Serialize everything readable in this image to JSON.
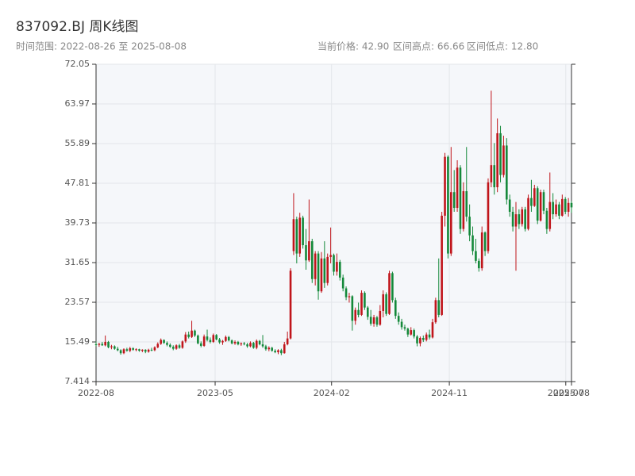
{
  "chart_data": {
    "type": "candlestick",
    "title": "837092.BJ 周K线图",
    "subtitle": "时间范围: 2022-08-26 至 2025-08-08",
    "stats": [
      "当前价格: 42.90",
      "区间高点: 66.66",
      "区间低点: 12.80"
    ],
    "up_color": "#c0151b",
    "down_color": "#14893a",
    "grid": true,
    "ylim": [
      7.414,
      72.05
    ],
    "yticks": [
      7.414,
      15.49,
      23.57,
      31.65,
      39.73,
      47.81,
      55.89,
      63.97,
      72.05
    ],
    "xlim": [
      "2022-08-26",
      "2025-08-08"
    ],
    "xticks": [
      {
        "value": "2022-08-26",
        "label": "2022-08"
      },
      {
        "value": "2023-05-23",
        "label": "2023-05"
      },
      {
        "value": "2024-02-11",
        "label": "2024-02"
      },
      {
        "value": "2024-11-04",
        "label": "2024-11"
      },
      {
        "value": "2025-07-26",
        "label": "2025-07"
      },
      {
        "value": "2025-08-08",
        "label": "2025-08"
      }
    ],
    "x": [
      "2022-08-26",
      "2022-09-02",
      "2022-09-09",
      "2022-09-16",
      "2022-09-23",
      "2022-09-30",
      "2022-10-07",
      "2022-10-14",
      "2022-10-21",
      "2022-10-28",
      "2022-11-04",
      "2022-11-11",
      "2022-11-18",
      "2022-11-25",
      "2022-12-02",
      "2022-12-09",
      "2022-12-16",
      "2022-12-23",
      "2022-12-30",
      "2023-01-06",
      "2023-01-13",
      "2023-01-20",
      "2023-01-27",
      "2023-02-03",
      "2023-02-10",
      "2023-02-17",
      "2023-02-24",
      "2023-03-03",
      "2023-03-10",
      "2023-03-17",
      "2023-03-24",
      "2023-03-31",
      "2023-04-07",
      "2023-04-14",
      "2023-04-21",
      "2023-04-28",
      "2023-05-05",
      "2023-05-12",
      "2023-05-19",
      "2023-05-26",
      "2023-06-02",
      "2023-06-09",
      "2023-06-16",
      "2023-06-23",
      "2023-06-30",
      "2023-07-07",
      "2023-07-14",
      "2023-07-21",
      "2023-07-28",
      "2023-08-04",
      "2023-08-11",
      "2023-08-18",
      "2023-08-25",
      "2023-09-01",
      "2023-09-08",
      "2023-09-15",
      "2023-09-22",
      "2023-09-29",
      "2023-10-06",
      "2023-10-13",
      "2023-10-20",
      "2023-10-27",
      "2023-11-03",
      "2023-11-10",
      "2023-11-17",
      "2023-11-24",
      "2023-12-01",
      "2023-12-08",
      "2023-12-15",
      "2023-12-22",
      "2023-12-29",
      "2024-01-05",
      "2024-01-12",
      "2024-01-19",
      "2024-01-26",
      "2024-02-02",
      "2024-02-09",
      "2024-02-16",
      "2024-02-23",
      "2024-03-01",
      "2024-03-08",
      "2024-03-15",
      "2024-03-22",
      "2024-03-29",
      "2024-04-05",
      "2024-04-12",
      "2024-04-19",
      "2024-04-26",
      "2024-05-03",
      "2024-05-10",
      "2024-05-17",
      "2024-05-24",
      "2024-05-31",
      "2024-06-07",
      "2024-06-14",
      "2024-06-21",
      "2024-06-28",
      "2024-07-05",
      "2024-07-12",
      "2024-07-19",
      "2024-07-26",
      "2024-08-02",
      "2024-08-09",
      "2024-08-16",
      "2024-08-23",
      "2024-08-30",
      "2024-09-06",
      "2024-09-13",
      "2024-09-20",
      "2024-09-27",
      "2024-10-04",
      "2024-10-11",
      "2024-10-18",
      "2024-10-25",
      "2024-11-01",
      "2024-11-08",
      "2024-11-15",
      "2024-11-22",
      "2024-11-29",
      "2024-12-06",
      "2024-12-13",
      "2024-12-20",
      "2024-12-27",
      "2025-01-03",
      "2025-01-10",
      "2025-01-17",
      "2025-01-24",
      "2025-01-31",
      "2025-02-07",
      "2025-02-14",
      "2025-02-21",
      "2025-02-28",
      "2025-03-07",
      "2025-03-14",
      "2025-03-21",
      "2025-03-28",
      "2025-04-04",
      "2025-04-11",
      "2025-04-18",
      "2025-04-25",
      "2025-05-02",
      "2025-05-09",
      "2025-05-16",
      "2025-05-23",
      "2025-05-30",
      "2025-06-06",
      "2025-06-13",
      "2025-06-20",
      "2025-06-27",
      "2025-07-04",
      "2025-07-11",
      "2025-07-18",
      "2025-07-25",
      "2025-08-01",
      "2025-08-08"
    ],
    "candles": [
      [
        15.0,
        15.6,
        14.6,
        14.9
      ],
      [
        14.9,
        15.3,
        14.5,
        15.1
      ],
      [
        15.1,
        15.5,
        14.7,
        14.8
      ],
      [
        14.8,
        16.8,
        14.6,
        15.5
      ],
      [
        15.5,
        15.7,
        14.2,
        14.4
      ],
      [
        14.4,
        14.9,
        14.0,
        14.6
      ],
      [
        14.6,
        14.8,
        13.9,
        14.1
      ],
      [
        14.1,
        14.5,
        13.6,
        13.8
      ],
      [
        13.8,
        14.0,
        12.9,
        13.2
      ],
      [
        13.2,
        14.2,
        13.0,
        14.0
      ],
      [
        14.0,
        14.3,
        13.5,
        13.7
      ],
      [
        13.7,
        14.5,
        13.4,
        14.2
      ],
      [
        14.2,
        14.4,
        13.7,
        13.9
      ],
      [
        13.9,
        14.2,
        13.6,
        14.0
      ],
      [
        14.0,
        14.1,
        13.5,
        13.7
      ],
      [
        13.7,
        14.0,
        13.4,
        13.9
      ],
      [
        13.9,
        14.0,
        13.2,
        13.5
      ],
      [
        13.5,
        14.1,
        13.3,
        13.9
      ],
      [
        13.9,
        14.3,
        13.6,
        13.8
      ],
      [
        13.8,
        14.6,
        13.6,
        14.4
      ],
      [
        14.4,
        15.4,
        14.2,
        15.1
      ],
      [
        15.1,
        16.2,
        14.9,
        15.9
      ],
      [
        15.9,
        16.0,
        15.1,
        15.3
      ],
      [
        15.3,
        15.6,
        14.6,
        14.9
      ],
      [
        14.9,
        15.2,
        14.3,
        14.5
      ],
      [
        14.5,
        14.8,
        13.8,
        14.1
      ],
      [
        14.1,
        15.0,
        13.9,
        14.8
      ],
      [
        14.8,
        15.1,
        14.1,
        14.3
      ],
      [
        14.3,
        15.8,
        14.1,
        15.6
      ],
      [
        15.6,
        17.5,
        15.3,
        17.0
      ],
      [
        17.0,
        17.6,
        16.2,
        16.5
      ],
      [
        16.5,
        19.8,
        16.3,
        17.8
      ],
      [
        17.8,
        18.0,
        16.5,
        16.8
      ],
      [
        16.8,
        17.0,
        15.0,
        15.2
      ],
      [
        15.2,
        15.6,
        14.4,
        14.7
      ],
      [
        14.7,
        17.0,
        14.5,
        16.6
      ],
      [
        16.6,
        18.0,
        15.6,
        15.9
      ],
      [
        15.9,
        16.4,
        15.2,
        15.5
      ],
      [
        15.5,
        17.2,
        15.3,
        16.9
      ],
      [
        16.9,
        17.1,
        15.8,
        16.0
      ],
      [
        16.0,
        16.3,
        15.1,
        15.4
      ],
      [
        15.4,
        15.9,
        14.9,
        15.7
      ],
      [
        15.7,
        16.8,
        15.5,
        16.5
      ],
      [
        16.5,
        16.7,
        15.6,
        15.8
      ],
      [
        15.8,
        16.0,
        15.0,
        15.2
      ],
      [
        15.2,
        15.8,
        14.9,
        15.5
      ],
      [
        15.5,
        15.7,
        14.8,
        15.0
      ],
      [
        15.0,
        15.4,
        14.7,
        15.2
      ],
      [
        15.2,
        15.5,
        14.8,
        15.0
      ],
      [
        15.0,
        15.3,
        14.3,
        14.6
      ],
      [
        14.6,
        15.6,
        14.4,
        15.3
      ],
      [
        15.3,
        15.5,
        14.1,
        14.3
      ],
      [
        14.3,
        16.0,
        14.0,
        15.7
      ],
      [
        15.7,
        15.9,
        14.8,
        15.0
      ],
      [
        15.0,
        16.9,
        14.3,
        14.6
      ],
      [
        14.6,
        14.9,
        13.7,
        14.0
      ],
      [
        14.0,
        14.6,
        13.6,
        14.3
      ],
      [
        14.3,
        14.5,
        13.5,
        13.7
      ],
      [
        13.7,
        14.0,
        13.2,
        13.4
      ],
      [
        13.4,
        14.0,
        13.0,
        13.8
      ],
      [
        13.8,
        14.1,
        12.8,
        13.2
      ],
      [
        13.2,
        15.5,
        13.1,
        15.0
      ],
      [
        15.0,
        17.6,
        14.8,
        16.2
      ],
      [
        16.2,
        30.5,
        16.0,
        30.0
      ],
      [
        34.0,
        45.8,
        33.2,
        40.5
      ],
      [
        40.5,
        41.0,
        31.5,
        33.5
      ],
      [
        33.5,
        41.8,
        32.8,
        40.8
      ],
      [
        40.8,
        41.2,
        34.5,
        35.2
      ],
      [
        35.2,
        38.5,
        30.2,
        32.1
      ],
      [
        32.1,
        44.5,
        31.8,
        36.0
      ],
      [
        36.0,
        36.5,
        27.5,
        28.3
      ],
      [
        28.3,
        34.0,
        27.0,
        33.5
      ],
      [
        33.5,
        34.0,
        24.1,
        25.8
      ],
      [
        25.8,
        33.8,
        25.5,
        32.5
      ],
      [
        32.5,
        36.0,
        26.5,
        27.5
      ],
      [
        27.5,
        33.5,
        27.0,
        32.8
      ],
      [
        32.8,
        38.8,
        31.5,
        33.2
      ],
      [
        33.2,
        33.5,
        29.0,
        29.8
      ],
      [
        29.8,
        33.5,
        29.0,
        31.8
      ],
      [
        31.8,
        32.2,
        28.0,
        28.6
      ],
      [
        28.6,
        29.2,
        25.8,
        26.4
      ],
      [
        26.4,
        26.8,
        24.0,
        24.6
      ],
      [
        24.6,
        25.5,
        23.5,
        24.8
      ],
      [
        24.8,
        25.0,
        17.8,
        19.8
      ],
      [
        19.8,
        22.5,
        19.0,
        22.0
      ],
      [
        22.0,
        23.5,
        20.5,
        21.0
      ],
      [
        21.0,
        26.0,
        20.8,
        25.5
      ],
      [
        25.5,
        25.8,
        22.0,
        22.5
      ],
      [
        22.5,
        22.8,
        20.0,
        20.6
      ],
      [
        20.6,
        22.0,
        18.8,
        19.2
      ],
      [
        19.2,
        21.0,
        18.6,
        20.5
      ],
      [
        20.5,
        20.8,
        18.6,
        19.0
      ],
      [
        19.0,
        23.0,
        18.8,
        21.8
      ],
      [
        21.8,
        26.0,
        20.5,
        25.2
      ],
      [
        25.2,
        25.6,
        20.8,
        21.2
      ],
      [
        21.2,
        30.0,
        21.0,
        29.5
      ],
      [
        29.5,
        29.8,
        23.5,
        24.0
      ],
      [
        24.0,
        24.5,
        20.2,
        20.8
      ],
      [
        20.8,
        21.5,
        19.0,
        19.6
      ],
      [
        19.6,
        20.2,
        18.0,
        18.5
      ],
      [
        18.5,
        19.0,
        17.8,
        18.2
      ],
      [
        18.2,
        18.4,
        16.5,
        17.0
      ],
      [
        17.0,
        18.5,
        16.8,
        17.9
      ],
      [
        17.9,
        18.2,
        16.2,
        16.6
      ],
      [
        16.6,
        16.9,
        14.6,
        15.2
      ],
      [
        15.2,
        16.6,
        14.6,
        16.3
      ],
      [
        16.3,
        16.8,
        15.5,
        15.9
      ],
      [
        15.9,
        17.4,
        15.6,
        17.0
      ],
      [
        17.0,
        18.0,
        16.0,
        16.4
      ],
      [
        16.4,
        20.2,
        16.2,
        19.5
      ],
      [
        19.5,
        24.5,
        19.2,
        24.0
      ],
      [
        24.0,
        32.5,
        20.5,
        21.0
      ],
      [
        21.0,
        42.0,
        20.8,
        41.2
      ],
      [
        41.2,
        54.0,
        39.0,
        53.2
      ],
      [
        53.2,
        53.5,
        32.5,
        33.5
      ],
      [
        33.5,
        55.2,
        33.0,
        46.0
      ],
      [
        46.0,
        50.5,
        42.0,
        42.8
      ],
      [
        42.8,
        52.5,
        42.0,
        51.0
      ],
      [
        51.0,
        51.5,
        37.5,
        38.5
      ],
      [
        38.5,
        48.0,
        38.0,
        46.2
      ],
      [
        46.2,
        55.2,
        40.0,
        41.0
      ],
      [
        41.0,
        43.5,
        36.0,
        37.2
      ],
      [
        37.2,
        39.0,
        33.2,
        34.0
      ],
      [
        34.0,
        36.5,
        31.5,
        32.0
      ],
      [
        32.0,
        32.5,
        29.8,
        30.5
      ],
      [
        30.5,
        39.0,
        30.0,
        37.8
      ],
      [
        37.8,
        38.0,
        33.0,
        34.0
      ],
      [
        34.0,
        48.8,
        33.5,
        48.0
      ],
      [
        48.0,
        66.66,
        47.0,
        51.5
      ],
      [
        51.5,
        56.0,
        45.5,
        47.0
      ],
      [
        47.0,
        61.0,
        46.0,
        58.0
      ],
      [
        58.0,
        59.5,
        48.0,
        49.5
      ],
      [
        49.5,
        57.5,
        49.0,
        55.5
      ],
      [
        55.5,
        57.0,
        43.5,
        44.5
      ],
      [
        44.5,
        45.5,
        41.0,
        42.0
      ],
      [
        42.0,
        43.0,
        38.0,
        39.0
      ],
      [
        39.0,
        44.0,
        30.0,
        41.5
      ],
      [
        41.5,
        42.5,
        38.5,
        39.5
      ],
      [
        39.5,
        43.0,
        39.0,
        42.5
      ],
      [
        42.5,
        43.0,
        38.0,
        38.5
      ],
      [
        38.5,
        45.5,
        38.2,
        44.8
      ],
      [
        44.8,
        48.5,
        42.0,
        43.2
      ],
      [
        43.2,
        47.5,
        43.0,
        46.8
      ],
      [
        46.8,
        47.2,
        39.5,
        40.2
      ],
      [
        40.2,
        46.5,
        40.0,
        46.0
      ],
      [
        46.0,
        46.5,
        41.5,
        42.2
      ],
      [
        42.2,
        42.8,
        37.5,
        38.5
      ],
      [
        38.5,
        50.0,
        38.0,
        44.0
      ],
      [
        44.0,
        45.8,
        40.5,
        41.5
      ],
      [
        41.5,
        44.5,
        41.0,
        43.5
      ],
      [
        43.5,
        44.0,
        40.5,
        41.2
      ],
      [
        41.2,
        45.5,
        41.0,
        44.6
      ],
      [
        44.6,
        45.0,
        41.5,
        42.0
      ],
      [
        42.0,
        44.8,
        41.0,
        43.8
      ],
      [
        43.8,
        44.2,
        41.8,
        42.9
      ]
    ]
  }
}
